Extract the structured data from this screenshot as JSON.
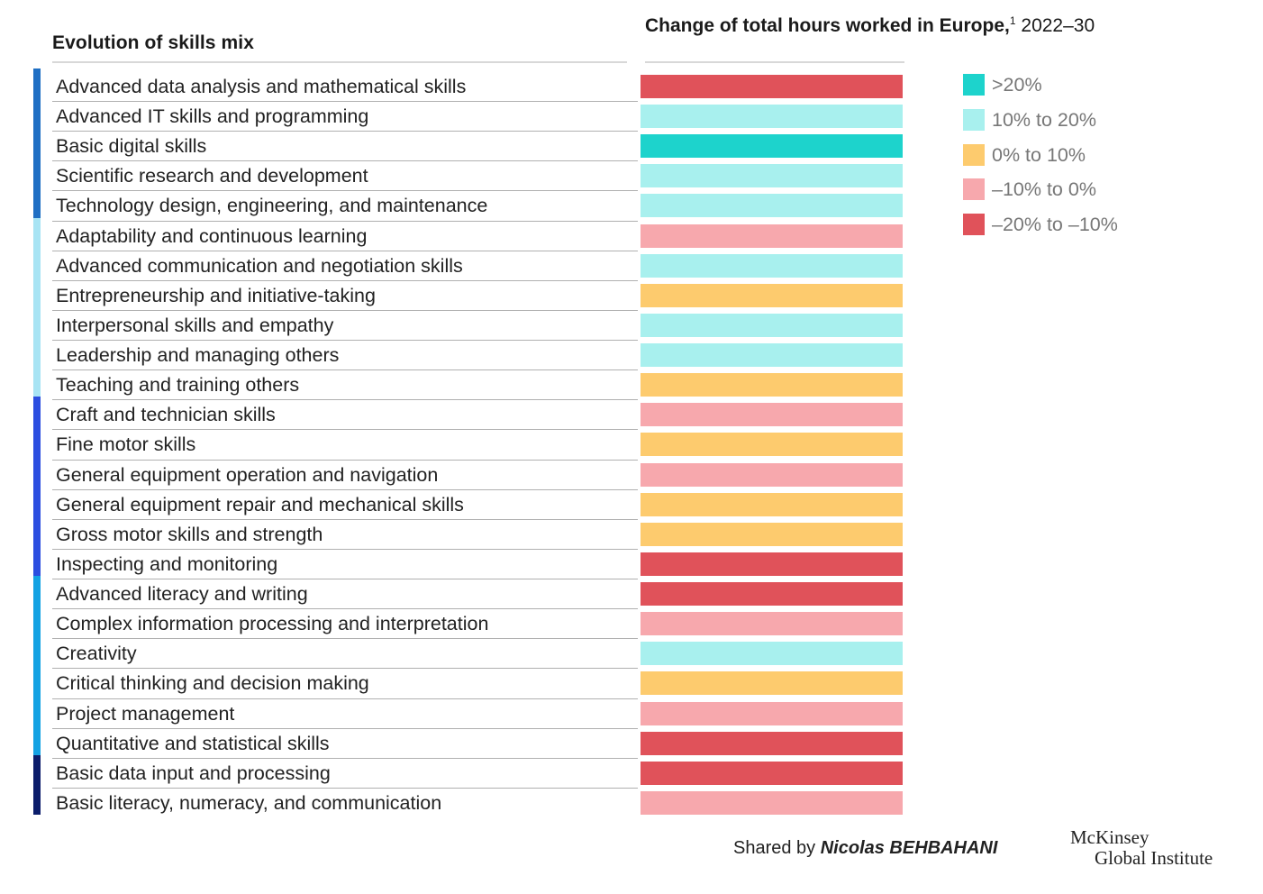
{
  "header": {
    "left_title": "Evolution of skills mix",
    "right_title_bold": "Change of total hours worked in Europe,",
    "right_title_sup": "1",
    "right_title_period": "2022–30"
  },
  "colors": {
    "gt20": "#1dd3cc",
    "10to20": "#a8f0ee",
    "0to10": "#fdcb6e",
    "m10to0": "#f7a8ad",
    "m20tom10": "#e0525a"
  },
  "group_colors": [
    "#1f6fc4",
    "#a8e4f4",
    "#2b4ee0",
    "#14a2e3",
    "#0b1d6b"
  ],
  "legend": [
    {
      "key": "gt20",
      "label": ">20%"
    },
    {
      "key": "10to20",
      "label": "10% to 20%"
    },
    {
      "key": "0to10",
      "label": "0% to 10%"
    },
    {
      "key": "m10to0",
      "label": "–10% to 0%"
    },
    {
      "key": "m20tom10",
      "label": "–20% to –10%"
    }
  ],
  "chart_data": {
    "type": "table",
    "title": "",
    "categories": [
      "Advanced data analysis and mathematical skills",
      "Advanced IT skills and programming",
      "Basic digital skills",
      "Scientific research and development",
      "Technology design, engineering, and maintenance",
      "Adaptability and continuous learning",
      "Advanced communication and negotiation skills",
      "Entrepreneurship and initiative-taking",
      "Interpersonal skills and empathy",
      "Leadership and managing others",
      "Teaching and training others",
      "Craft and technician skills",
      "Fine motor skills",
      "General equipment operation and navigation",
      "General equipment repair and mechanical skills",
      "Gross motor skills and strength",
      "Inspecting and monitoring",
      "Advanced literacy and writing",
      "Complex information processing and interpretation",
      "Creativity",
      "Critical thinking and decision making",
      "Project management",
      "Quantitative and statistical skills",
      "Basic data input and processing",
      "Basic literacy, numeracy, and communication"
    ],
    "values": [
      "m20tom10",
      "10to20",
      "gt20",
      "10to20",
      "10to20",
      "m10to0",
      "10to20",
      "0to10",
      "10to20",
      "10to20",
      "0to10",
      "m10to0",
      "0to10",
      "m10to0",
      "0to10",
      "0to10",
      "m20tom10",
      "m20tom10",
      "m10to0",
      "10to20",
      "0to10",
      "m10to0",
      "m20tom10",
      "m20tom10",
      "m10to0"
    ],
    "groups": [
      0,
      0,
      0,
      0,
      0,
      1,
      1,
      1,
      1,
      1,
      1,
      2,
      2,
      2,
      2,
      2,
      2,
      3,
      3,
      3,
      3,
      3,
      3,
      4,
      4
    ]
  },
  "footer": {
    "shared_prefix": "Shared by",
    "shared_name": "Nicolas BEHBAHANI",
    "brand_line1": "McKinsey",
    "brand_line2": "Global Institute"
  }
}
